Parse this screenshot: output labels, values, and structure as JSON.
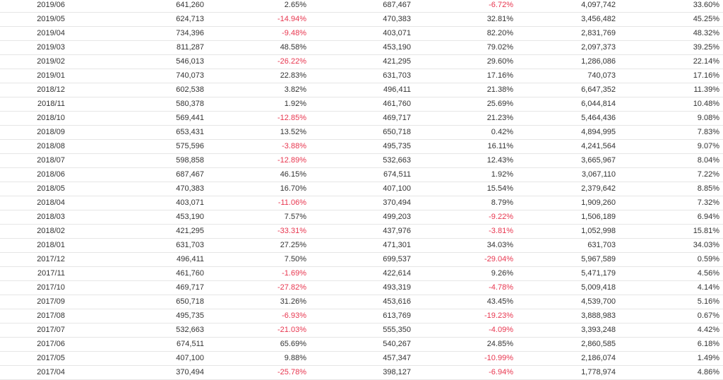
{
  "colors": {
    "text": "#333333",
    "negative": "#e8364f",
    "divider": "#e6e6e6"
  },
  "table": {
    "rows": [
      [
        "2019/06",
        "641,260",
        "2.65%",
        "687,467",
        "-6.72%",
        "4,097,742",
        "33.60%"
      ],
      [
        "2019/05",
        "624,713",
        "-14.94%",
        "470,383",
        "32.81%",
        "3,456,482",
        "45.25%"
      ],
      [
        "2019/04",
        "734,396",
        "-9.48%",
        "403,071",
        "82.20%",
        "2,831,769",
        "48.32%"
      ],
      [
        "2019/03",
        "811,287",
        "48.58%",
        "453,190",
        "79.02%",
        "2,097,373",
        "39.25%"
      ],
      [
        "2019/02",
        "546,013",
        "-26.22%",
        "421,295",
        "29.60%",
        "1,286,086",
        "22.14%"
      ],
      [
        "2019/01",
        "740,073",
        "22.83%",
        "631,703",
        "17.16%",
        "740,073",
        "17.16%"
      ],
      [
        "2018/12",
        "602,538",
        "3.82%",
        "496,411",
        "21.38%",
        "6,647,352",
        "11.39%"
      ],
      [
        "2018/11",
        "580,378",
        "1.92%",
        "461,760",
        "25.69%",
        "6,044,814",
        "10.48%"
      ],
      [
        "2018/10",
        "569,441",
        "-12.85%",
        "469,717",
        "21.23%",
        "5,464,436",
        "9.08%"
      ],
      [
        "2018/09",
        "653,431",
        "13.52%",
        "650,718",
        "0.42%",
        "4,894,995",
        "7.83%"
      ],
      [
        "2018/08",
        "575,596",
        "-3.88%",
        "495,735",
        "16.11%",
        "4,241,564",
        "9.07%"
      ],
      [
        "2018/07",
        "598,858",
        "-12.89%",
        "532,663",
        "12.43%",
        "3,665,967",
        "8.04%"
      ],
      [
        "2018/06",
        "687,467",
        "46.15%",
        "674,511",
        "1.92%",
        "3,067,110",
        "7.22%"
      ],
      [
        "2018/05",
        "470,383",
        "16.70%",
        "407,100",
        "15.54%",
        "2,379,642",
        "8.85%"
      ],
      [
        "2018/04",
        "403,071",
        "-11.06%",
        "370,494",
        "8.79%",
        "1,909,260",
        "7.32%"
      ],
      [
        "2018/03",
        "453,190",
        "7.57%",
        "499,203",
        "-9.22%",
        "1,506,189",
        "6.94%"
      ],
      [
        "2018/02",
        "421,295",
        "-33.31%",
        "437,976",
        "-3.81%",
        "1,052,998",
        "15.81%"
      ],
      [
        "2018/01",
        "631,703",
        "27.25%",
        "471,301",
        "34.03%",
        "631,703",
        "34.03%"
      ],
      [
        "2017/12",
        "496,411",
        "7.50%",
        "699,537",
        "-29.04%",
        "5,967,589",
        "0.59%"
      ],
      [
        "2017/11",
        "461,760",
        "-1.69%",
        "422,614",
        "9.26%",
        "5,471,179",
        "4.56%"
      ],
      [
        "2017/10",
        "469,717",
        "-27.82%",
        "493,319",
        "-4.78%",
        "5,009,418",
        "4.14%"
      ],
      [
        "2017/09",
        "650,718",
        "31.26%",
        "453,616",
        "43.45%",
        "4,539,700",
        "5.16%"
      ],
      [
        "2017/08",
        "495,735",
        "-6.93%",
        "613,769",
        "-19.23%",
        "3,888,983",
        "0.67%"
      ],
      [
        "2017/07",
        "532,663",
        "-21.03%",
        "555,350",
        "-4.09%",
        "3,393,248",
        "4.42%"
      ],
      [
        "2017/06",
        "674,511",
        "65.69%",
        "540,267",
        "24.85%",
        "2,860,585",
        "6.18%"
      ],
      [
        "2017/05",
        "407,100",
        "9.88%",
        "457,347",
        "-10.99%",
        "2,186,074",
        "1.49%"
      ],
      [
        "2017/04",
        "370,494",
        "-25.78%",
        "398,127",
        "-6.94%",
        "1,778,974",
        "4.86%"
      ]
    ]
  }
}
